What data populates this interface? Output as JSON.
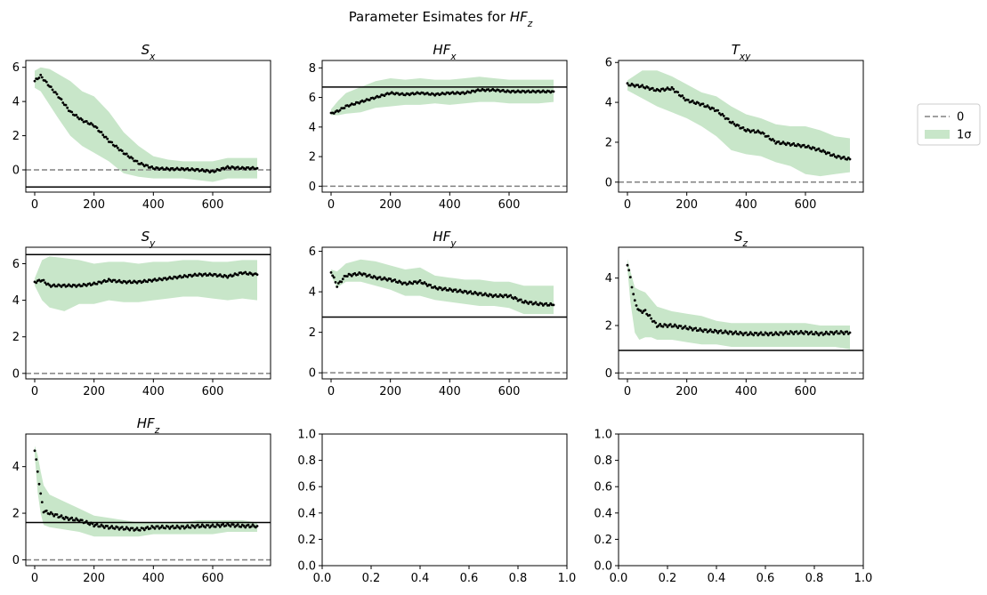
{
  "figure": {
    "title": "Parameter Esimates for HF_z"
  },
  "legend": {
    "placement": "right",
    "entries": [
      {
        "label": "0",
        "style": "dashed-line",
        "color": "#808080"
      },
      {
        "label": "1σ",
        "style": "filled-band",
        "color": "#c8e6c9"
      }
    ]
  },
  "colors": {
    "band": "#c8e6c9",
    "points": "#000000",
    "zero_line": "#808080",
    "reference_line": "#000000"
  },
  "chart_data": [
    {
      "type": "scatter",
      "title": "S_x",
      "xlabel": "",
      "ylabel": "",
      "xlim": [
        -30,
        795
      ],
      "ylim": [
        -1.3,
        6.4
      ],
      "xticks": [
        0,
        200,
        400,
        600
      ],
      "yticks": [
        0,
        2,
        4,
        6
      ],
      "zero_line": 0,
      "reference_line": -1.0,
      "estimate": {
        "x": [
          0,
          20,
          50,
          80,
          120,
          160,
          200,
          250,
          300,
          350,
          400,
          450,
          500,
          550,
          600,
          650,
          700,
          750
        ],
        "y": [
          5.2,
          5.5,
          4.9,
          4.3,
          3.4,
          2.9,
          2.6,
          1.7,
          1.0,
          0.4,
          0.1,
          0.05,
          0.05,
          0.0,
          -0.1,
          0.15,
          0.1,
          0.1
        ]
      },
      "band": {
        "x": [
          0,
          20,
          50,
          80,
          120,
          160,
          200,
          250,
          300,
          350,
          400,
          450,
          500,
          550,
          600,
          650,
          700,
          750
        ],
        "lower": [
          4.8,
          4.6,
          3.8,
          3.0,
          2.0,
          1.4,
          1.0,
          0.5,
          -0.2,
          -0.4,
          -0.5,
          -0.5,
          -0.5,
          -0.6,
          -0.7,
          -0.5,
          -0.5,
          -0.5
        ],
        "upper": [
          5.8,
          6.0,
          5.9,
          5.6,
          5.2,
          4.6,
          4.3,
          3.4,
          2.2,
          1.4,
          0.8,
          0.6,
          0.5,
          0.5,
          0.5,
          0.7,
          0.7,
          0.7
        ]
      }
    },
    {
      "type": "scatter",
      "title": "HF_x",
      "xlabel": "",
      "ylabel": "",
      "xlim": [
        -30,
        795
      ],
      "ylim": [
        -0.4,
        8.5
      ],
      "xticks": [
        0,
        200,
        400,
        600
      ],
      "yticks": [
        0,
        2,
        4,
        6,
        8
      ],
      "zero_line": 0,
      "reference_line": 6.7,
      "estimate": {
        "x": [
          0,
          25,
          50,
          100,
          150,
          200,
          250,
          300,
          350,
          400,
          450,
          500,
          550,
          600,
          650,
          700,
          750
        ],
        "y": [
          4.9,
          5.1,
          5.4,
          5.7,
          6.0,
          6.3,
          6.2,
          6.3,
          6.2,
          6.3,
          6.3,
          6.5,
          6.5,
          6.4,
          6.4,
          6.4,
          6.4
        ]
      },
      "band": {
        "x": [
          0,
          25,
          50,
          100,
          150,
          200,
          250,
          300,
          350,
          400,
          450,
          500,
          550,
          600,
          650,
          700,
          750
        ],
        "lower": [
          4.8,
          4.8,
          4.9,
          5.0,
          5.3,
          5.4,
          5.5,
          5.5,
          5.6,
          5.5,
          5.6,
          5.7,
          5.7,
          5.6,
          5.6,
          5.6,
          5.7
        ],
        "upper": [
          5.2,
          5.8,
          6.3,
          6.7,
          7.1,
          7.3,
          7.2,
          7.3,
          7.2,
          7.2,
          7.3,
          7.4,
          7.3,
          7.2,
          7.2,
          7.2,
          7.2
        ]
      }
    },
    {
      "type": "scatter",
      "title": "T_xy",
      "xlabel": "",
      "ylabel": "",
      "xlim": [
        -30,
        795
      ],
      "ylim": [
        -0.5,
        6.1
      ],
      "xticks": [
        0,
        200,
        400,
        600
      ],
      "yticks": [
        0,
        2,
        4,
        6
      ],
      "zero_line": 0,
      "reference_line": null,
      "estimate": {
        "x": [
          0,
          50,
          100,
          150,
          200,
          250,
          300,
          350,
          400,
          450,
          500,
          550,
          600,
          650,
          700,
          750
        ],
        "y": [
          4.9,
          4.8,
          4.6,
          4.7,
          4.1,
          3.9,
          3.6,
          3.0,
          2.6,
          2.5,
          2.0,
          1.9,
          1.8,
          1.6,
          1.3,
          1.15
        ]
      },
      "band": {
        "x": [
          0,
          50,
          100,
          150,
          200,
          250,
          300,
          350,
          400,
          450,
          500,
          550,
          600,
          650,
          700,
          750
        ],
        "lower": [
          4.6,
          4.2,
          3.8,
          3.5,
          3.2,
          2.8,
          2.3,
          1.6,
          1.4,
          1.3,
          1.0,
          0.8,
          0.4,
          0.3,
          0.4,
          0.5
        ],
        "upper": [
          5.1,
          5.6,
          5.6,
          5.3,
          4.9,
          4.5,
          4.3,
          3.8,
          3.4,
          3.2,
          2.9,
          2.8,
          2.8,
          2.6,
          2.3,
          2.2
        ]
      }
    },
    {
      "type": "scatter",
      "title": "S_y",
      "xlabel": "",
      "ylabel": "",
      "xlim": [
        -30,
        795
      ],
      "ylim": [
        -0.3,
        6.9
      ],
      "xticks": [
        0,
        200,
        400,
        600
      ],
      "yticks": [
        0,
        2,
        4,
        6
      ],
      "zero_line": 0,
      "reference_line": 6.5,
      "estimate": {
        "x": [
          0,
          25,
          50,
          100,
          150,
          200,
          250,
          300,
          350,
          400,
          450,
          500,
          550,
          600,
          650,
          700,
          750
        ],
        "y": [
          5.0,
          5.1,
          4.8,
          4.8,
          4.8,
          4.9,
          5.1,
          5.0,
          5.0,
          5.1,
          5.2,
          5.3,
          5.4,
          5.4,
          5.3,
          5.5,
          5.4
        ]
      },
      "band": {
        "x": [
          0,
          25,
          50,
          100,
          150,
          200,
          250,
          300,
          350,
          400,
          450,
          500,
          550,
          600,
          650,
          700,
          750
        ],
        "lower": [
          4.8,
          4.0,
          3.6,
          3.4,
          3.8,
          3.8,
          4.0,
          3.9,
          3.9,
          4.0,
          4.1,
          4.2,
          4.2,
          4.1,
          4.0,
          4.1,
          4.0
        ],
        "upper": [
          5.2,
          6.2,
          6.4,
          6.3,
          6.2,
          6.0,
          6.1,
          6.1,
          6.0,
          6.1,
          6.1,
          6.2,
          6.2,
          6.1,
          6.1,
          6.2,
          6.2
        ]
      }
    },
    {
      "type": "scatter",
      "title": "HF_y",
      "xlabel": "",
      "ylabel": "",
      "xlim": [
        -30,
        795
      ],
      "ylim": [
        -0.3,
        6.2
      ],
      "xticks": [
        0,
        200,
        400,
        600
      ],
      "yticks": [
        0,
        2,
        4,
        6
      ],
      "zero_line": 0,
      "reference_line": 2.75,
      "estimate": {
        "x": [
          0,
          20,
          50,
          100,
          150,
          200,
          250,
          300,
          350,
          400,
          450,
          500,
          550,
          600,
          650,
          700,
          750
        ],
        "y": [
          5.0,
          4.3,
          4.8,
          4.9,
          4.7,
          4.6,
          4.4,
          4.5,
          4.2,
          4.1,
          4.0,
          3.9,
          3.8,
          3.8,
          3.5,
          3.4,
          3.35
        ]
      },
      "band": {
        "x": [
          0,
          20,
          50,
          100,
          150,
          200,
          250,
          300,
          350,
          400,
          450,
          500,
          550,
          600,
          650,
          700,
          750
        ],
        "lower": [
          4.8,
          4.2,
          4.5,
          4.5,
          4.3,
          4.1,
          3.8,
          3.8,
          3.6,
          3.5,
          3.4,
          3.3,
          3.3,
          3.2,
          2.9,
          2.9,
          2.9
        ],
        "upper": [
          5.1,
          5.0,
          5.4,
          5.6,
          5.5,
          5.3,
          5.1,
          5.2,
          4.8,
          4.7,
          4.6,
          4.6,
          4.5,
          4.5,
          4.3,
          4.3,
          4.3
        ]
      }
    },
    {
      "type": "scatter",
      "title": "S_z",
      "xlabel": "",
      "ylabel": "",
      "xlim": [
        -30,
        795
      ],
      "ylim": [
        -0.25,
        5.3
      ],
      "xticks": [
        0,
        200,
        400,
        600
      ],
      "yticks": [
        0,
        2,
        4
      ],
      "zero_line": 0,
      "reference_line": 0.95,
      "estimate": {
        "x": [
          0,
          10,
          25,
          40,
          60,
          80,
          100,
          150,
          200,
          250,
          300,
          350,
          400,
          450,
          500,
          550,
          600,
          650,
          700,
          750
        ],
        "y": [
          4.6,
          4.0,
          3.0,
          2.6,
          2.6,
          2.3,
          2.0,
          2.0,
          1.9,
          1.8,
          1.75,
          1.7,
          1.65,
          1.65,
          1.65,
          1.7,
          1.7,
          1.65,
          1.7,
          1.7
        ]
      },
      "band": {
        "x": [
          0,
          10,
          25,
          40,
          60,
          80,
          100,
          150,
          200,
          250,
          300,
          350,
          400,
          450,
          500,
          550,
          600,
          650,
          700,
          750
        ],
        "lower": [
          4.4,
          3.0,
          1.7,
          1.4,
          1.5,
          1.5,
          1.4,
          1.4,
          1.3,
          1.2,
          1.2,
          1.1,
          1.1,
          1.1,
          1.1,
          1.1,
          1.1,
          1.1,
          1.1,
          1.0
        ],
        "upper": [
          4.8,
          4.3,
          3.6,
          3.5,
          3.4,
          3.1,
          2.8,
          2.6,
          2.5,
          2.4,
          2.2,
          2.1,
          2.1,
          2.1,
          2.1,
          2.1,
          2.1,
          2.0,
          2.0,
          2.0
        ]
      }
    },
    {
      "type": "scatter",
      "title": "HF_z",
      "xlabel": "",
      "ylabel": "",
      "xlim": [
        -30,
        795
      ],
      "ylim": [
        -0.25,
        5.4
      ],
      "xticks": [
        0,
        200,
        400,
        600
      ],
      "yticks": [
        0,
        2,
        4
      ],
      "zero_line": 0,
      "reference_line": 1.6,
      "estimate": {
        "x": [
          0,
          10,
          20,
          30,
          50,
          100,
          150,
          200,
          250,
          300,
          350,
          400,
          450,
          500,
          550,
          600,
          650,
          700,
          750
        ],
        "y": [
          4.7,
          3.8,
          2.8,
          2.1,
          2.0,
          1.8,
          1.7,
          1.5,
          1.4,
          1.35,
          1.3,
          1.4,
          1.4,
          1.4,
          1.45,
          1.45,
          1.5,
          1.45,
          1.45
        ]
      },
      "band": {
        "x": [
          0,
          10,
          20,
          30,
          50,
          100,
          150,
          200,
          250,
          300,
          350,
          400,
          450,
          500,
          550,
          600,
          650,
          700,
          750
        ],
        "lower": [
          4.5,
          2.9,
          2.0,
          1.5,
          1.4,
          1.3,
          1.2,
          1.0,
          1.0,
          1.0,
          1.0,
          1.1,
          1.1,
          1.1,
          1.1,
          1.1,
          1.2,
          1.2,
          1.2
        ],
        "upper": [
          4.9,
          4.5,
          3.8,
          3.2,
          2.8,
          2.5,
          2.2,
          1.9,
          1.8,
          1.7,
          1.6,
          1.6,
          1.6,
          1.6,
          1.7,
          1.7,
          1.7,
          1.7,
          1.6
        ]
      }
    },
    {
      "type": "scatter",
      "title": "",
      "xlabel": "",
      "ylabel": "",
      "xlim": [
        0,
        1
      ],
      "ylim": [
        0,
        1
      ],
      "xticks": [
        0.0,
        0.2,
        0.4,
        0.6,
        0.8,
        1.0
      ],
      "yticks": [
        0.0,
        0.2,
        0.4,
        0.6,
        0.8,
        1.0
      ],
      "xtick_labels": [
        "0.0",
        "0.2",
        "0.4",
        "0.6",
        "0.8",
        "1.0"
      ],
      "ytick_labels": [
        "0.0",
        "0.2",
        "0.4",
        "0.6",
        "0.8",
        "1.0"
      ],
      "empty": true
    },
    {
      "type": "scatter",
      "title": "",
      "xlabel": "",
      "ylabel": "",
      "xlim": [
        0,
        1
      ],
      "ylim": [
        0,
        1
      ],
      "xticks": [
        0.0,
        0.2,
        0.4,
        0.6,
        0.8,
        1.0
      ],
      "yticks": [
        0.0,
        0.2,
        0.4,
        0.6,
        0.8,
        1.0
      ],
      "xtick_labels": [
        "0.0",
        "0.2",
        "0.4",
        "0.6",
        "0.8",
        "1.0"
      ],
      "ytick_labels": [
        "0.0",
        "0.2",
        "0.4",
        "0.6",
        "0.8",
        "1.0"
      ],
      "empty": true
    }
  ]
}
